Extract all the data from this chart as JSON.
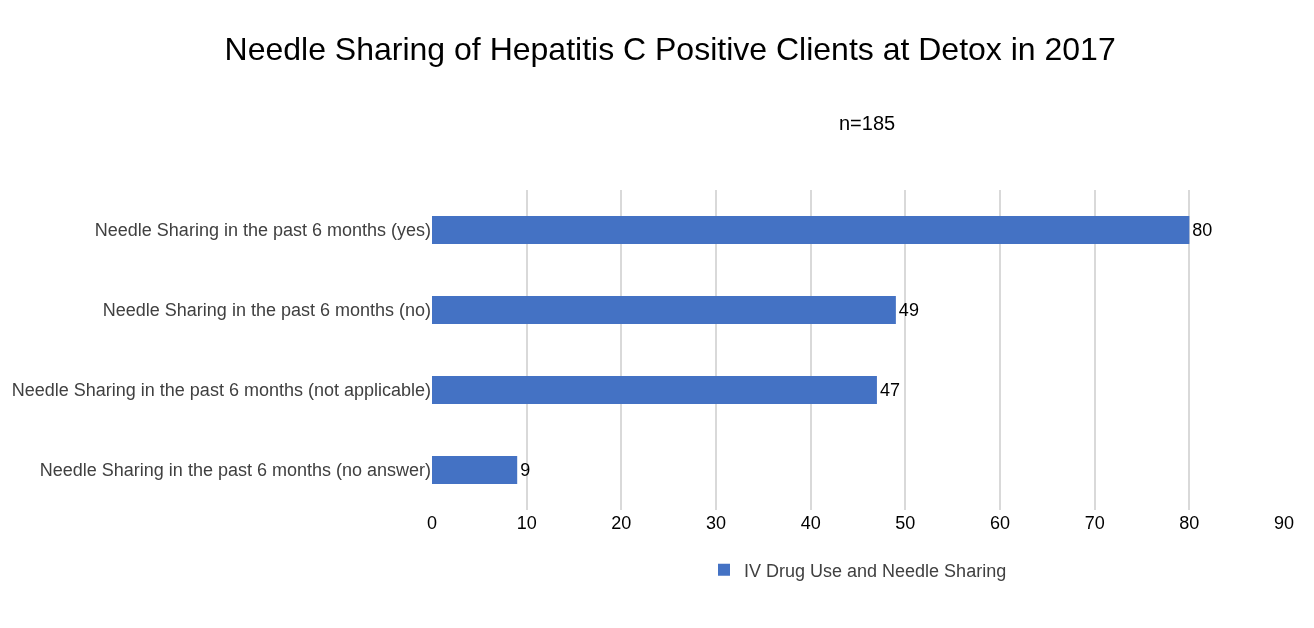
{
  "chart_data": {
    "type": "bar",
    "orientation": "horizontal",
    "title": "Needle Sharing of Hepatitis C Positive Clients at Detox in 2017",
    "subtitle": "n=185",
    "categories": [
      "Needle Sharing in the past 6 months (yes)",
      "Needle Sharing in the past 6 months (no)",
      "Needle Sharing in the past 6 months (not applicable)",
      "Needle Sharing in the past 6 months (no answer)"
    ],
    "series": [
      {
        "name": "IV Drug Use and Needle Sharing",
        "color": "#4472c4",
        "values": [
          80,
          49,
          47,
          9
        ]
      }
    ],
    "xlim": [
      0,
      90
    ],
    "xticks": [
      0,
      10,
      20,
      30,
      40,
      50,
      60,
      70,
      80,
      90
    ],
    "grid": "x",
    "legend": "bottom",
    "data_labels": true
  }
}
